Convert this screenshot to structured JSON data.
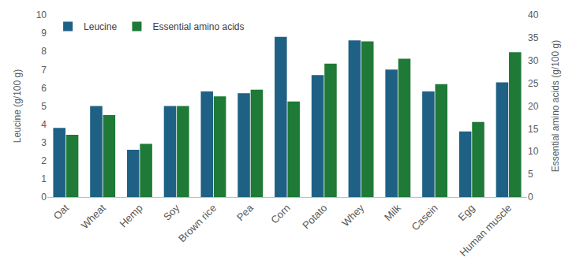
{
  "chart_data": {
    "type": "bar",
    "categories": [
      "Oat",
      "Wheat",
      "Hemp",
      "Soy",
      "Brown rice",
      "Pea",
      "Corn",
      "Potato",
      "Whey",
      "Milk",
      "Casein",
      "Egg",
      "Human muscle"
    ],
    "series": [
      {
        "name": "Leucine",
        "color": "#1f6185",
        "axis": "y",
        "values": [
          3.8,
          5.0,
          2.6,
          5.0,
          5.8,
          5.7,
          8.8,
          6.7,
          8.6,
          7.0,
          5.8,
          3.6,
          6.3
        ]
      },
      {
        "name": "Essential amino acids",
        "color": "#1e7a36",
        "axis": "y2",
        "values": [
          13.7,
          18.0,
          11.7,
          20.0,
          22.1,
          23.6,
          21.0,
          29.3,
          34.2,
          30.4,
          24.8,
          16.5,
          31.8
        ]
      }
    ],
    "y_label": "Leucine (g/100 g)",
    "y2_label": "Essential amino acids (g/100 g)",
    "ylim": [
      0,
      10
    ],
    "yticks": [
      0,
      1,
      2,
      3,
      4,
      5,
      6,
      7,
      8,
      9,
      10
    ],
    "y2lim": [
      0,
      40
    ],
    "y2ticks": [
      0,
      5,
      10,
      15,
      20,
      25,
      30,
      35,
      40
    ],
    "grid": false,
    "legend": "top-left"
  }
}
